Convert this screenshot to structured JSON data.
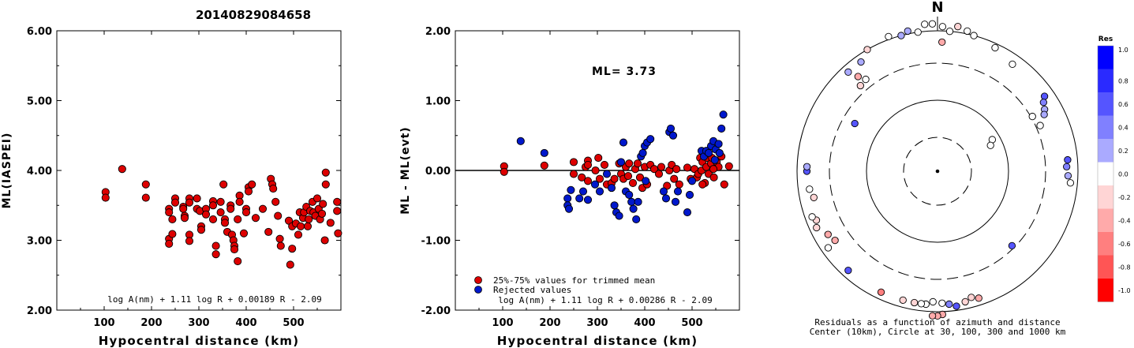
{
  "title": "20140829084658",
  "chart_data": [
    {
      "type": "scatter",
      "name": "ml-vs-distance",
      "xlabel": "Hypocentral distance (km)",
      "ylabel": "ML(IASPEI)",
      "xlim": [
        0,
        600
      ],
      "ylim": [
        2.0,
        6.0
      ],
      "xticks": [
        "100",
        "200",
        "300",
        "400",
        "500"
      ],
      "yticks": [
        "2.00",
        "3.00",
        "4.00",
        "5.00",
        "6.00"
      ],
      "formula": "log A(nm) + 1.11 log R + 0.00189 R - 2.09",
      "marker_color": "#dd0000",
      "points": [
        [
          103,
          3.69
        ],
        [
          103,
          3.61
        ],
        [
          138,
          4.02
        ],
        [
          188,
          3.8
        ],
        [
          188,
          3.61
        ],
        [
          237,
          3.45
        ],
        [
          237,
          3.4
        ],
        [
          237,
          3.02
        ],
        [
          237,
          2.95
        ],
        [
          244,
          3.3
        ],
        [
          244,
          3.09
        ],
        [
          250,
          3.6
        ],
        [
          250,
          3.54
        ],
        [
          267,
          3.48
        ],
        [
          267,
          3.45
        ],
        [
          270,
          3.35
        ],
        [
          270,
          3.32
        ],
        [
          280,
          3.6
        ],
        [
          280,
          3.54
        ],
        [
          280,
          3.08
        ],
        [
          280,
          2.99
        ],
        [
          296,
          3.6
        ],
        [
          296,
          3.45
        ],
        [
          302,
          3.42
        ],
        [
          305,
          3.2
        ],
        [
          305,
          3.15
        ],
        [
          315,
          3.45
        ],
        [
          315,
          3.37
        ],
        [
          330,
          3.56
        ],
        [
          330,
          3.5
        ],
        [
          330,
          3.3
        ],
        [
          336,
          2.92
        ],
        [
          336,
          2.8
        ],
        [
          346,
          3.55
        ],
        [
          346,
          3.4
        ],
        [
          352,
          3.8
        ],
        [
          355,
          3.3
        ],
        [
          355,
          3.25
        ],
        [
          360,
          3.12
        ],
        [
          367,
          3.5
        ],
        [
          367,
          3.45
        ],
        [
          370,
          3.08
        ],
        [
          373,
          3.0
        ],
        [
          375,
          2.92
        ],
        [
          375,
          2.87
        ],
        [
          382,
          3.3
        ],
        [
          382,
          2.7
        ],
        [
          386,
          3.64
        ],
        [
          386,
          3.55
        ],
        [
          395,
          3.1
        ],
        [
          400,
          3.45
        ],
        [
          400,
          3.4
        ],
        [
          405,
          3.76
        ],
        [
          405,
          3.7
        ],
        [
          412,
          3.8
        ],
        [
          420,
          3.32
        ],
        [
          435,
          3.45
        ],
        [
          447,
          3.12
        ],
        [
          452,
          3.88
        ],
        [
          455,
          3.8
        ],
        [
          457,
          3.74
        ],
        [
          462,
          3.55
        ],
        [
          467,
          3.35
        ],
        [
          471,
          3.02
        ],
        [
          473,
          2.92
        ],
        [
          490,
          3.28
        ],
        [
          493,
          2.65
        ],
        [
          497,
          2.88
        ],
        [
          497,
          3.2
        ],
        [
          505,
          3.24
        ],
        [
          510,
          3.08
        ],
        [
          513,
          3.4
        ],
        [
          515,
          3.2
        ],
        [
          520,
          3.32
        ],
        [
          522,
          3.4
        ],
        [
          527,
          3.48
        ],
        [
          530,
          3.2
        ],
        [
          532,
          3.3
        ],
        [
          535,
          3.42
        ],
        [
          540,
          3.55
        ],
        [
          542,
          3.4
        ],
        [
          546,
          3.35
        ],
        [
          550,
          3.6
        ],
        [
          553,
          3.45
        ],
        [
          556,
          3.3
        ],
        [
          560,
          3.38
        ],
        [
          562,
          3.52
        ],
        [
          566,
          3.0
        ],
        [
          568,
          3.8
        ],
        [
          568,
          3.97
        ],
        [
          578,
          3.25
        ],
        [
          592,
          3.55
        ],
        [
          592,
          3.42
        ],
        [
          594,
          3.1
        ]
      ]
    },
    {
      "type": "scatter",
      "name": "ml-residual-vs-distance",
      "xlabel": "Hypocentral distance (km)",
      "ylabel": "ML - ML(evt)",
      "xlim": [
        0,
        600
      ],
      "ylim": [
        -2.0,
        2.0
      ],
      "xticks": [
        "100",
        "200",
        "300",
        "400",
        "500"
      ],
      "yticks": [
        "-2.00",
        "-1.00",
        "0.00",
        "1.00",
        "2.00"
      ],
      "annotation": "ML= 3.73",
      "formula": "log A(nm) + 1.11 log R + 0.00286 R - 2.09",
      "legend": [
        {
          "label": "25%-75% values for trimmed mean",
          "color": "#dd0000"
        },
        {
          "label": "Rejected values",
          "color": "#0018cc"
        }
      ],
      "series": [
        {
          "name": "25%-75% values for trimmed mean",
          "color": "#dd0000",
          "points": [
            [
              103,
              0.06
            ],
            [
              103,
              -0.02
            ],
            [
              188,
              0.07
            ],
            [
              250,
              0.12
            ],
            [
              250,
              -0.05
            ],
            [
              267,
              -0.1
            ],
            [
              275,
              0.05
            ],
            [
              280,
              0.14
            ],
            [
              280,
              0.08
            ],
            [
              280,
              -0.15
            ],
            [
              296,
              0.0
            ],
            [
              302,
              0.18
            ],
            [
              305,
              -0.12
            ],
            [
              315,
              0.08
            ],
            [
              320,
              -0.2
            ],
            [
              330,
              -0.18
            ],
            [
              336,
              -0.12
            ],
            [
              346,
              0.1
            ],
            [
              350,
              -0.05
            ],
            [
              355,
              -0.12
            ],
            [
              360,
              0.05
            ],
            [
              365,
              -0.08
            ],
            [
              367,
              0.1
            ],
            [
              375,
              -0.18
            ],
            [
              380,
              0.02
            ],
            [
              385,
              0.1
            ],
            [
              390,
              -0.1
            ],
            [
              395,
              -0.25
            ],
            [
              400,
              0.05
            ],
            [
              405,
              -0.2
            ],
            [
              412,
              0.08
            ],
            [
              420,
              0.02
            ],
            [
              430,
              -0.05
            ],
            [
              435,
              0.05
            ],
            [
              447,
              -0.22
            ],
            [
              452,
              0.0
            ],
            [
              457,
              0.08
            ],
            [
              462,
              -0.12
            ],
            [
              467,
              0.02
            ],
            [
              473,
              -0.2
            ],
            [
              490,
              0.04
            ],
            [
              497,
              -0.12
            ],
            [
              505,
              0.02
            ],
            [
              510,
              -0.1
            ],
            [
              513,
              -0.05
            ],
            [
              517,
              0.18
            ],
            [
              520,
              0.0
            ],
            [
              522,
              0.12
            ],
            [
              527,
              -0.18
            ],
            [
              530,
              0.05
            ],
            [
              532,
              0.18
            ],
            [
              535,
              -0.05
            ],
            [
              540,
              0.1
            ],
            [
              542,
              0.18
            ],
            [
              546,
              -0.1
            ],
            [
              552,
              0.12
            ],
            [
              556,
              0.05
            ],
            [
              562,
              0.2
            ],
            [
              568,
              -0.2
            ],
            [
              578,
              0.06
            ],
            [
              522,
              -0.2
            ],
            [
              545,
              0.02
            ]
          ]
        },
        {
          "name": "Rejected values",
          "color": "#0018cc",
          "points": [
            [
              138,
              0.42
            ],
            [
              188,
              0.25
            ],
            [
              237,
              -0.4
            ],
            [
              237,
              -0.5
            ],
            [
              240,
              -0.55
            ],
            [
              244,
              -0.28
            ],
            [
              262,
              -0.4
            ],
            [
              270,
              -0.3
            ],
            [
              280,
              -0.42
            ],
            [
              295,
              -0.2
            ],
            [
              305,
              -0.3
            ],
            [
              320,
              -0.05
            ],
            [
              330,
              -0.25
            ],
            [
              336,
              -0.5
            ],
            [
              340,
              -0.6
            ],
            [
              346,
              -0.65
            ],
            [
              350,
              0.12
            ],
            [
              355,
              0.4
            ],
            [
              360,
              -0.3
            ],
            [
              367,
              -0.35
            ],
            [
              372,
              -0.45
            ],
            [
              376,
              -0.55
            ],
            [
              382,
              -0.7
            ],
            [
              386,
              -0.45
            ],
            [
              392,
              0.2
            ],
            [
              396,
              0.25
            ],
            [
              400,
              0.35
            ],
            [
              402,
              -0.15
            ],
            [
              405,
              0.4
            ],
            [
              412,
              0.45
            ],
            [
              440,
              -0.3
            ],
            [
              445,
              -0.4
            ],
            [
              452,
              0.55
            ],
            [
              455,
              0.6
            ],
            [
              460,
              0.5
            ],
            [
              465,
              -0.45
            ],
            [
              470,
              -0.3
            ],
            [
              490,
              -0.6
            ],
            [
              495,
              -0.35
            ],
            [
              500,
              -0.15
            ],
            [
              520,
              0.28
            ],
            [
              525,
              0.2
            ],
            [
              530,
              0.28
            ],
            [
              535,
              0.25
            ],
            [
              540,
              0.35
            ],
            [
              545,
              0.42
            ],
            [
              550,
              0.3
            ],
            [
              556,
              0.38
            ],
            [
              562,
              0.6
            ],
            [
              566,
              0.8
            ],
            [
              558,
              0.25
            ],
            [
              548,
              0.15
            ]
          ]
        }
      ]
    },
    {
      "type": "scatter",
      "name": "azimuth-residual-map",
      "north_label": "N",
      "caption_line1": "Residuals as a function of azimuth and distance",
      "caption_line2": "Center (10km), Circle at 30, 100, 300 and 1000 km",
      "colorbar": {
        "title": "Res",
        "ticks": [
          "1.0",
          "0.8",
          "0.6",
          "0.4",
          "0.2",
          "0.0",
          "-0.2",
          "-0.4",
          "-0.6",
          "-0.8",
          "-1.0"
        ],
        "stops": [
          [
            "1.0",
            "#0000ff"
          ],
          [
            "0.8",
            "#2a2aff"
          ],
          [
            "0.6",
            "#5555ff"
          ],
          [
            "0.4",
            "#8080ff"
          ],
          [
            "0.2",
            "#aaaaff"
          ],
          [
            "0.0",
            "#ffffff"
          ],
          [
            "-0.2",
            "#ffd5d5"
          ],
          [
            "-0.4",
            "#ffaaaa"
          ],
          [
            "-0.6",
            "#ff7f7f"
          ],
          [
            "-0.8",
            "#ff5555"
          ],
          [
            "-1.0",
            "#ff0000"
          ]
        ]
      },
      "distance_axis_km": [
        10,
        30,
        100,
        300,
        1000
      ],
      "stations": [
        [
          355,
          1.05,
          0.0
        ],
        [
          358,
          1.05,
          -0.1
        ],
        [
          2,
          1.03,
          0.0
        ],
        [
          5,
          1.0,
          0.0
        ],
        [
          8,
          1.04,
          -0.2
        ],
        [
          12,
          1.02,
          0.0
        ],
        [
          348,
          1.02,
          0.1
        ],
        [
          352,
          1.0,
          0.0
        ],
        [
          2,
          0.92,
          -0.4
        ],
        [
          15,
          1.0,
          0.0
        ],
        [
          25,
          0.97,
          0.0
        ],
        [
          330,
          1.0,
          -0.3
        ],
        [
          340,
          1.02,
          0.0
        ],
        [
          325,
          0.95,
          0.3
        ],
        [
          318,
          0.95,
          0.2
        ],
        [
          320,
          0.88,
          -0.5
        ],
        [
          318,
          0.82,
          -0.2
        ],
        [
          322,
          0.83,
          0.0
        ],
        [
          345,
          1.0,
          0.1
        ],
        [
          35,
          0.93,
          0.0
        ],
        [
          55,
          0.93,
          0.5
        ],
        [
          57,
          0.9,
          0.4
        ],
        [
          60,
          0.88,
          0.3
        ],
        [
          62,
          0.86,
          0.2
        ],
        [
          60,
          0.78,
          0.0
        ],
        [
          66,
          0.8,
          0.0
        ],
        [
          60,
          0.45,
          0.0
        ],
        [
          64,
          0.42,
          0.0
        ],
        [
          300,
          0.68,
          0.6
        ],
        [
          85,
          0.93,
          0.6
        ],
        [
          88,
          0.92,
          0.4
        ],
        [
          92,
          0.93,
          0.2
        ],
        [
          95,
          0.95,
          0.0
        ],
        [
          270,
          0.93,
          0.5
        ],
        [
          272,
          0.93,
          0.3
        ],
        [
          245,
          0.95,
          -0.3
        ],
        [
          248,
          0.93,
          -0.2
        ],
        [
          250,
          0.95,
          0.0
        ],
        [
          240,
          0.9,
          -0.5
        ],
        [
          236,
          0.88,
          -0.4
        ],
        [
          235,
          0.95,
          0.0
        ],
        [
          258,
          0.9,
          -0.2
        ],
        [
          262,
          0.92,
          0.0
        ],
        [
          222,
          0.95,
          0.6
        ],
        [
          205,
          0.95,
          -0.6
        ],
        [
          195,
          0.95,
          -0.3
        ],
        [
          190,
          0.95,
          -0.2
        ],
        [
          185,
          0.95,
          0.0
        ],
        [
          182,
          0.93,
          -0.1
        ],
        [
          178,
          0.94,
          0.0
        ],
        [
          175,
          0.95,
          0.4
        ],
        [
          172,
          0.97,
          0.5
        ],
        [
          168,
          0.95,
          -0.3
        ],
        [
          165,
          0.93,
          -0.2
        ],
        [
          162,
          0.95,
          -0.4
        ],
        [
          178,
          1.02,
          -0.4
        ],
        [
          180,
          1.03,
          -0.5
        ],
        [
          182,
          1.03,
          -0.4
        ],
        [
          135,
          0.75,
          0.5
        ],
        [
          187,
          0.95,
          0.0
        ]
      ]
    }
  ]
}
